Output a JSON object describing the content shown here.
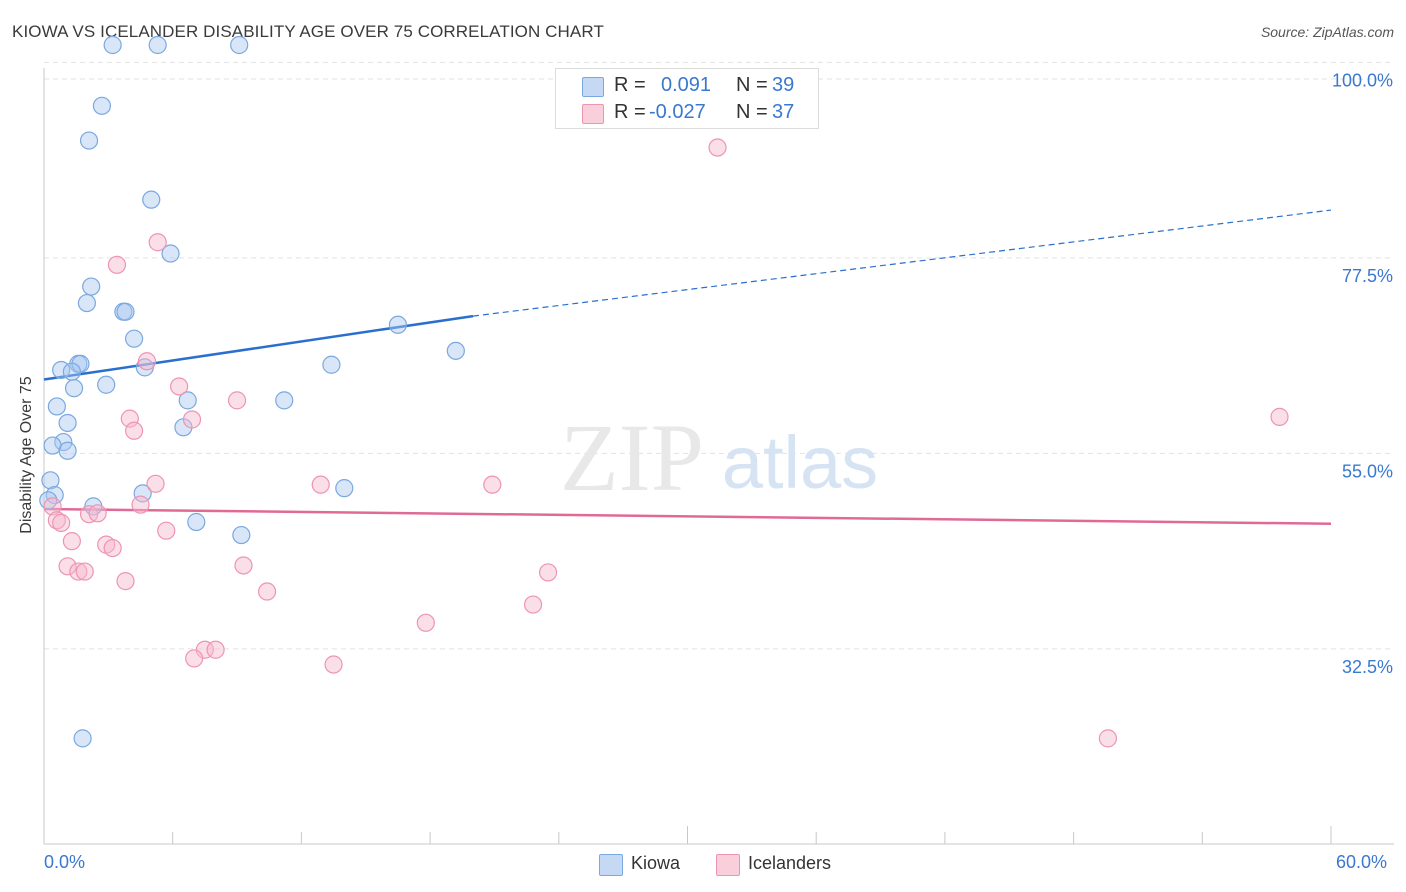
{
  "header": {
    "title": "KIOWA VS ICELANDER DISABILITY AGE OVER 75 CORRELATION CHART",
    "source": "Source: ZipAtlas.com"
  },
  "watermark": {
    "zip": "ZIP",
    "atlas": "atlas"
  },
  "legend_top": {
    "rows": [
      {
        "r_label": "R =",
        "r_value": "0.091",
        "n_label": "N =",
        "n_value": "39"
      },
      {
        "r_label": "R =",
        "r_value": "-0.027",
        "n_label": "N =",
        "n_value": "37"
      }
    ]
  },
  "legend_bottom": {
    "kiowa": "Kiowa",
    "icelanders": "Icelanders"
  },
  "colors": {
    "kiowa_fill": "#a9c8f0",
    "kiowa_stroke": "#7aa8e0",
    "kiowa_line": "#2a6fd0",
    "ice_fill": "#f6b8cc",
    "ice_stroke": "#ee94b2",
    "ice_line": "#e06a96",
    "tick_text": "#3a78d0",
    "grid": "#e2e2e2"
  },
  "chart_data": {
    "type": "scatter",
    "title": "KIOWA VS ICELANDER DISABILITY AGE OVER 75 CORRELATION CHART",
    "xlabel": "",
    "ylabel": "Disability Age Over 75",
    "xlim": [
      0,
      60
    ],
    "ylim": [
      12,
      102
    ],
    "x_tick_labels": [
      "0.0%",
      "60.0%"
    ],
    "y_ticks": [
      32.5,
      55.0,
      77.5,
      100.0
    ],
    "y_tick_labels": [
      "32.5%",
      "55.0%",
      "77.5%",
      "100.0%"
    ],
    "grid": true,
    "series": [
      {
        "name": "Kiowa",
        "R": 0.091,
        "N": 39,
        "trend": {
          "x0": 0,
          "y0": 63.5,
          "x1": 20,
          "y1": 70.8,
          "dashed_to_x": 60,
          "dashed_to_y": 83.0
        },
        "points": [
          [
            3.2,
            102
          ],
          [
            5.3,
            102
          ],
          [
            9.1,
            102
          ],
          [
            2.7,
            95
          ],
          [
            2.1,
            91
          ],
          [
            5.0,
            84.2
          ],
          [
            5.9,
            78
          ],
          [
            2.2,
            74.2
          ],
          [
            2.0,
            72.3
          ],
          [
            3.7,
            71.3
          ],
          [
            3.8,
            71.3
          ],
          [
            4.2,
            68.2
          ],
          [
            16.5,
            69.8
          ],
          [
            19.2,
            66.8
          ],
          [
            13.4,
            65.2
          ],
          [
            1.6,
            65.3
          ],
          [
            1.7,
            65.3
          ],
          [
            0.8,
            64.6
          ],
          [
            1.3,
            64.4
          ],
          [
            4.7,
            64.9
          ],
          [
            2.9,
            62.9
          ],
          [
            1.4,
            62.5
          ],
          [
            6.7,
            61.1
          ],
          [
            11.2,
            61.1
          ],
          [
            0.6,
            60.4
          ],
          [
            1.1,
            58.5
          ],
          [
            6.5,
            58.0
          ],
          [
            0.9,
            56.3
          ],
          [
            0.4,
            55.9
          ],
          [
            1.1,
            55.3
          ],
          [
            0.3,
            51.9
          ],
          [
            0.5,
            50.2
          ],
          [
            14.0,
            51.0
          ],
          [
            4.6,
            50.4
          ],
          [
            2.3,
            48.9
          ],
          [
            7.1,
            47.1
          ],
          [
            9.2,
            45.6
          ],
          [
            0.2,
            49.6
          ],
          [
            1.8,
            22.2
          ]
        ]
      },
      {
        "name": "Icelanders",
        "R": -0.027,
        "N": 37,
        "trend": {
          "x0": 0,
          "y0": 48.6,
          "x1": 60,
          "y1": 46.9
        },
        "points": [
          [
            31.4,
            90.2
          ],
          [
            5.3,
            79.3
          ],
          [
            3.4,
            76.7
          ],
          [
            4.8,
            65.6
          ],
          [
            6.3,
            62.7
          ],
          [
            9.0,
            61.1
          ],
          [
            6.9,
            58.9
          ],
          [
            4.0,
            59.0
          ],
          [
            4.2,
            57.6
          ],
          [
            57.6,
            59.2
          ],
          [
            5.2,
            51.5
          ],
          [
            12.9,
            51.4
          ],
          [
            20.9,
            51.4
          ],
          [
            0.4,
            48.9
          ],
          [
            4.5,
            49.1
          ],
          [
            0.6,
            47.3
          ],
          [
            0.8,
            47.0
          ],
          [
            2.1,
            48.0
          ],
          [
            2.5,
            48.1
          ],
          [
            5.7,
            46.1
          ],
          [
            1.3,
            44.9
          ],
          [
            2.9,
            44.5
          ],
          [
            3.2,
            44.1
          ],
          [
            1.1,
            42.0
          ],
          [
            1.6,
            41.4
          ],
          [
            1.9,
            41.4
          ],
          [
            9.3,
            42.1
          ],
          [
            3.8,
            40.3
          ],
          [
            23.5,
            41.3
          ],
          [
            10.4,
            39.1
          ],
          [
            22.8,
            37.6
          ],
          [
            17.8,
            35.5
          ],
          [
            7.5,
            32.4
          ],
          [
            8.0,
            32.4
          ],
          [
            7.0,
            31.4
          ],
          [
            13.5,
            30.7
          ],
          [
            49.6,
            22.2
          ]
        ]
      }
    ]
  }
}
